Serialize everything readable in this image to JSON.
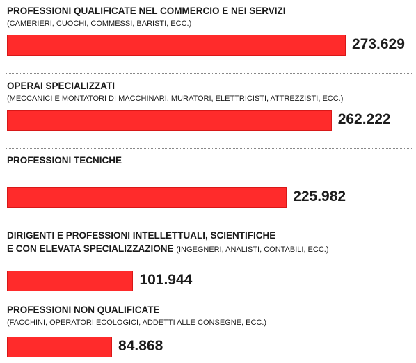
{
  "chart_data": {
    "type": "bar",
    "orientation": "horizontal",
    "categories": [
      "PROFESSIONI QUALIFICATE NEL COMMERCIO E NEI SERVIZI",
      "OPERAI SPECIALIZZATI",
      "PROFESSIONI TECNICHE",
      "DIRIGENTI E PROFESSIONI INTELLETTUALI, SCIENTIFICHE\nE CON ELEVATA  SPECIALIZZAZIONE",
      "PROFESSIONI NON QUALIFICATE"
    ],
    "descriptions": [
      "(CAMERIERI, CUOCHI, COMMESSI, BARISTI, ECC.)",
      "(MECCANICI E MONTATORI DI MACCHINARI, MURATORI, ELETTRICISTI, ATTREZZISTI, ECC.)",
      null,
      "(INGEGNERI, ANALISTI, CONTABILI, ECC.)",
      "(FACCHINI, OPERATORI ECOLOGICI, ADDETTI ALLE CONSEGNE, ECC.)"
    ],
    "values": [
      273629,
      262222,
      225982,
      101944,
      84868
    ],
    "value_labels": [
      "273.629",
      "262.222",
      "225.982",
      "101.944",
      "84.868"
    ],
    "color": "#ff2b2b"
  }
}
